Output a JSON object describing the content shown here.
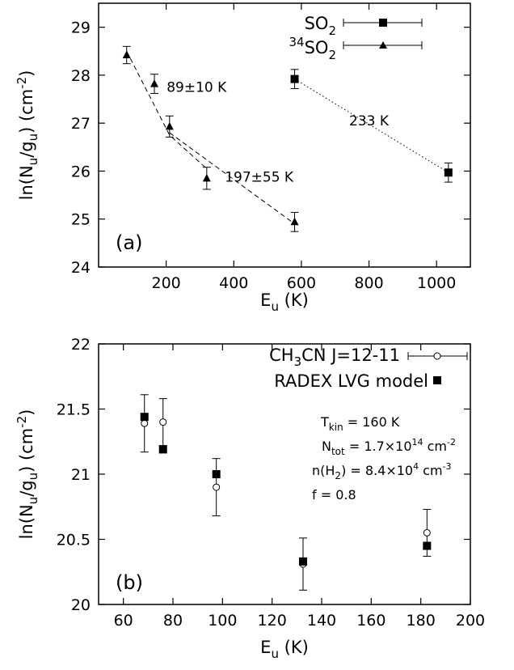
{
  "chart_data": [
    {
      "panel_label": "(a)",
      "type": "scatter",
      "xlabel": "E_u (K)",
      "ylabel": "ln(N_u/g_u) (cm^-2)",
      "xlim": [
        0,
        1100
      ],
      "ylim": [
        24,
        29.5
      ],
      "xticks": [
        200,
        400,
        600,
        800,
        1000
      ],
      "yticks": [
        24,
        25,
        26,
        27,
        28,
        29
      ],
      "x_tick_labels": [
        "200",
        "400",
        "600",
        "800",
        "1000"
      ],
      "y_tick_labels": [
        "24",
        "25",
        "26",
        "27",
        "28",
        "29"
      ],
      "legend": "top-right",
      "series": [
        {
          "name": "SO2",
          "legend_sup": "",
          "legend_main": "SO",
          "legend_sub": "2",
          "marker": "square",
          "points": [
            {
              "x": 580,
              "y": 27.92,
              "err": 0.2
            },
            {
              "x": 1035,
              "y": 25.97,
              "err": 0.2
            }
          ]
        },
        {
          "name": "34SO2",
          "legend_sup": "34",
          "legend_main": "SO",
          "legend_sub": "2",
          "marker": "triangle",
          "points": [
            {
              "x": 83,
              "y": 28.42,
              "err": 0.18
            },
            {
              "x": 165,
              "y": 27.82,
              "err": 0.2
            },
            {
              "x": 210,
              "y": 26.93,
              "err": 0.22
            },
            {
              "x": 320,
              "y": 25.85,
              "err": 0.23
            },
            {
              "x": 580,
              "y": 24.94,
              "err": 0.2
            }
          ]
        }
      ],
      "fits": [
        {
          "style": "dashed",
          "points": [
            [
              83,
              28.5
            ],
            [
              210,
              26.75
            ],
            [
              320,
              26.05
            ]
          ]
        },
        {
          "style": "dashed",
          "points": [
            [
              210,
              26.8
            ],
            [
              580,
              24.9
            ]
          ]
        },
        {
          "style": "dotted",
          "points": [
            [
              580,
              27.92
            ],
            [
              1035,
              25.97
            ]
          ]
        }
      ],
      "annotations": [
        {
          "text": "89±10 K",
          "x": 290,
          "y": 27.65
        },
        {
          "text": "197±55 K",
          "x": 475,
          "y": 25.78
        },
        {
          "text": "233 K",
          "x": 800,
          "y": 26.95
        }
      ]
    },
    {
      "panel_label": "(b)",
      "type": "scatter",
      "xlabel": "E_u (K)",
      "ylabel": "ln(N_u/g_u) (cm^-2)",
      "xlim": [
        50,
        200
      ],
      "ylim": [
        20,
        22
      ],
      "xticks": [
        60,
        80,
        100,
        120,
        140,
        160,
        180,
        200
      ],
      "yticks": [
        20,
        20.5,
        21,
        21.5,
        22
      ],
      "x_tick_labels": [
        "60",
        "80",
        "100",
        "120",
        "140",
        "160",
        "180",
        "200"
      ],
      "y_tick_labels": [
        "20",
        "20.5",
        "21",
        "21.5",
        "22"
      ],
      "legend": "top-right",
      "series": [
        {
          "name": "CH3CN J=12-11",
          "legend_parts": [
            "CH",
            "3",
            "CN J=12-11"
          ],
          "marker": "open-circle",
          "points": [
            {
              "x": 68.5,
              "y": 21.39,
              "err": 0.22
            },
            {
              "x": 76,
              "y": 21.4,
              "err": 0.18
            },
            {
              "x": 97.5,
              "y": 20.9,
              "err": 0.22
            },
            {
              "x": 132.5,
              "y": 20.31,
              "err": 0.2
            },
            {
              "x": 182.5,
              "y": 20.55,
              "err": 0.18
            }
          ]
        },
        {
          "name": "RADEX LVG model",
          "marker": "square",
          "points": [
            {
              "x": 68.5,
              "y": 21.44
            },
            {
              "x": 76,
              "y": 21.19
            },
            {
              "x": 97.5,
              "y": 21.0
            },
            {
              "x": 132.5,
              "y": 20.33
            },
            {
              "x": 182.5,
              "y": 20.45
            }
          ]
        }
      ],
      "model_params": {
        "tkin": {
          "main": "T",
          "sub": "kin",
          "rest": " = 160 K"
        },
        "ntot": {
          "main": "N",
          "sub": "tot",
          "rest": " = 1.7×10",
          "exp": "14",
          "unit": " cm",
          "unit_exp": "-2"
        },
        "nh2": {
          "pre": "n(H",
          "sub": "2",
          "post": ") = 8.4×10",
          "exp": "4",
          "unit": " cm",
          "unit_exp": "-3"
        },
        "f": "f = 0.8"
      }
    }
  ]
}
